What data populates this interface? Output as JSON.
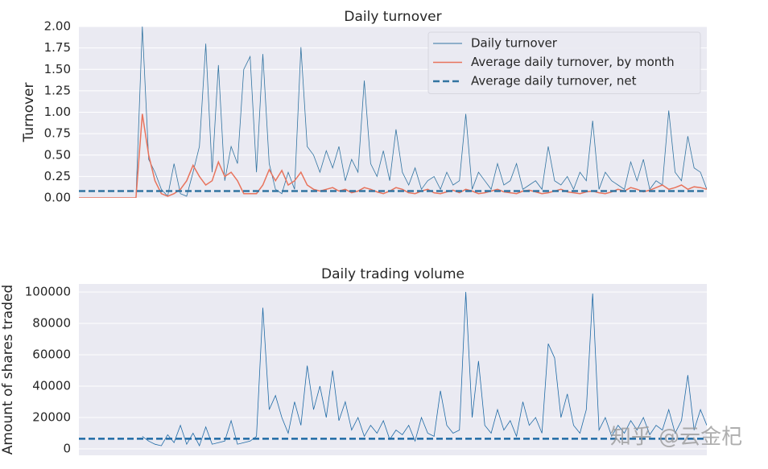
{
  "chart_data": [
    {
      "type": "line",
      "title": "Daily turnover",
      "ylabel": "Turnover",
      "ylim": [
        0,
        2
      ],
      "yticks": [
        {
          "value": 0,
          "label": "0.00"
        },
        0.25,
        {
          "value": 0.5,
          "label": "0.50"
        },
        0.75,
        {
          "value": 1,
          "label": "1.00"
        },
        1.25,
        {
          "value": 1.5,
          "label": "1.50"
        },
        1.75,
        {
          "value": 2,
          "label": "2.00"
        }
      ],
      "grid": true,
      "legend": "upper right",
      "categories": [
        null,
        null,
        null,
        null,
        null,
        null,
        null,
        null,
        null,
        null,
        null,
        null,
        null,
        null,
        null,
        null,
        null,
        null,
        null,
        null,
        null,
        null,
        null,
        null,
        null,
        null,
        null,
        null,
        null,
        null,
        null,
        null,
        null,
        null,
        null,
        null,
        null,
        null,
        null,
        null,
        null,
        null,
        null,
        null,
        null,
        null,
        null,
        null,
        null,
        null,
        null,
        null,
        null,
        null,
        null,
        null,
        null,
        null,
        null,
        null,
        null,
        null,
        null,
        null,
        null,
        null,
        null,
        null,
        null,
        null,
        null,
        null,
        null,
        null,
        null,
        null,
        null,
        null,
        null,
        null,
        null,
        null,
        null,
        null,
        null,
        null,
        null,
        null,
        null,
        null,
        null,
        null,
        null,
        null,
        null,
        null,
        null,
        null,
        null,
        null
      ],
      "series": [
        {
          "name": "Daily turnover",
          "color": "#3274a1",
          "width": 0.8,
          "values": [
            0,
            0,
            0,
            0,
            0,
            0,
            0,
            0,
            0,
            0,
            2,
            0.45,
            0.3,
            0.1,
            0.02,
            0.4,
            0.05,
            0.02,
            0.3,
            0.6,
            1.8,
            0.3,
            1.55,
            0.2,
            0.6,
            0.4,
            1.5,
            1.65,
            0.3,
            1.68,
            0.4,
            0.1,
            0.05,
            0.3,
            0.1,
            1.76,
            0.6,
            0.5,
            0.3,
            0.55,
            0.35,
            0.6,
            0.2,
            0.45,
            0.3,
            1.37,
            0.4,
            0.25,
            0.55,
            0.2,
            0.8,
            0.3,
            0.15,
            0.35,
            0.1,
            0.2,
            0.25,
            0.1,
            0.3,
            0.15,
            0.2,
            0.98,
            0.1,
            0.3,
            0.2,
            0.1,
            0.4,
            0.15,
            0.2,
            0.4,
            0.1,
            0.15,
            0.2,
            0.1,
            0.6,
            0.2,
            0.15,
            0.25,
            0.1,
            0.3,
            0.2,
            0.9,
            0.1,
            0.3,
            0.2,
            0.15,
            0.1,
            0.42,
            0.2,
            0.45,
            0.1,
            0.2,
            0.15,
            1.02,
            0.3,
            0.2,
            0.72,
            0.35,
            0.3,
            0.1
          ]
        },
        {
          "name": "Average daily turnover, by month",
          "color": "#e8735c",
          "width": 1.5,
          "values": [
            0,
            0,
            0,
            0,
            0,
            0,
            0,
            0,
            0,
            0,
            0.98,
            0.5,
            0.2,
            0.05,
            0.02,
            0.05,
            0.1,
            0.2,
            0.38,
            0.25,
            0.15,
            0.2,
            0.42,
            0.25,
            0.3,
            0.2,
            0.05,
            0.05,
            0.05,
            0.15,
            0.33,
            0.2,
            0.32,
            0.15,
            0.2,
            0.3,
            0.15,
            0.1,
            0.08,
            0.1,
            0.12,
            0.08,
            0.1,
            0.06,
            0.08,
            0.12,
            0.1,
            0.07,
            0.05,
            0.08,
            0.12,
            0.1,
            0.06,
            0.05,
            0.08,
            0.1,
            0.06,
            0.05,
            0.07,
            0.09,
            0.06,
            0.1,
            0.08,
            0.05,
            0.06,
            0.08,
            0.1,
            0.07,
            0.06,
            0.05,
            0.08,
            0.09,
            0.07,
            0.05,
            0.06,
            0.08,
            0.1,
            0.07,
            0.06,
            0.05,
            0.07,
            0.08,
            0.06,
            0.05,
            0.07,
            0.1,
            0.08,
            0.12,
            0.1,
            0.07,
            0.09,
            0.12,
            0.15,
            0.1,
            0.12,
            0.15,
            0.1,
            0.13,
            0.12,
            0.1
          ]
        },
        {
          "name": "Average daily turnover, net",
          "color": "#3274a1",
          "width": 2.5,
          "dashed": true,
          "level": 0.08
        }
      ]
    },
    {
      "type": "line",
      "title": "Daily trading volume",
      "ylabel": "Amount of shares traded",
      "ylim": [
        -4100,
        105100
      ],
      "yticks": [
        0,
        20000,
        40000,
        60000,
        80000,
        100000
      ],
      "grid": true,
      "categories": [
        null,
        null,
        null,
        null,
        null,
        null,
        null,
        null,
        null,
        null,
        null,
        null,
        null,
        null,
        null,
        null,
        null,
        null,
        null,
        null,
        null,
        null,
        null,
        null,
        null,
        null,
        null,
        null,
        null,
        null,
        null,
        null,
        null,
        null,
        null,
        null,
        null,
        null,
        null,
        null,
        null,
        null,
        null,
        null,
        null,
        null,
        null,
        null,
        null,
        null,
        null,
        null,
        null,
        null,
        null,
        null,
        null,
        null,
        null,
        null,
        null,
        null,
        null,
        null,
        null,
        null,
        null,
        null,
        null,
        null,
        null,
        null,
        null,
        null,
        null,
        null,
        null,
        null,
        null,
        null,
        null,
        null,
        null,
        null,
        null,
        null,
        null,
        null,
        null,
        null,
        null,
        null,
        null,
        null,
        null,
        null,
        null,
        null,
        null,
        null
      ],
      "series": [
        {
          "color": "#1f6aa5",
          "width": 0.8,
          "values": [
            null,
            null,
            null,
            null,
            null,
            null,
            null,
            null,
            null,
            null,
            8000,
            5000,
            3000,
            2000,
            9000,
            4000,
            15000,
            3000,
            10000,
            2000,
            14000,
            3000,
            4000,
            5000,
            18000,
            3000,
            4000,
            5000,
            8000,
            90000,
            25000,
            34000,
            20000,
            10000,
            30000,
            15000,
            53000,
            25000,
            40000,
            20000,
            50000,
            18000,
            30000,
            12000,
            20000,
            8000,
            15000,
            10000,
            18000,
            6000,
            12000,
            9000,
            15000,
            5000,
            20000,
            10000,
            8000,
            37000,
            15000,
            10000,
            12000,
            100000,
            20000,
            56000,
            15000,
            10000,
            25000,
            12000,
            18000,
            8000,
            30000,
            15000,
            20000,
            10000,
            67000,
            58000,
            20000,
            35000,
            15000,
            10000,
            25000,
            99000,
            12000,
            20000,
            8000,
            15000,
            10000,
            18000,
            12000,
            20000,
            9000,
            15000,
            12000,
            25000,
            10000,
            18000,
            47000,
            12000,
            25000,
            15000
          ]
        },
        {
          "color": "#1f6aa5",
          "width": 2.5,
          "dashed": true,
          "level": 6500
        }
      ]
    }
  ],
  "watermark": "知乎 @云金杞"
}
